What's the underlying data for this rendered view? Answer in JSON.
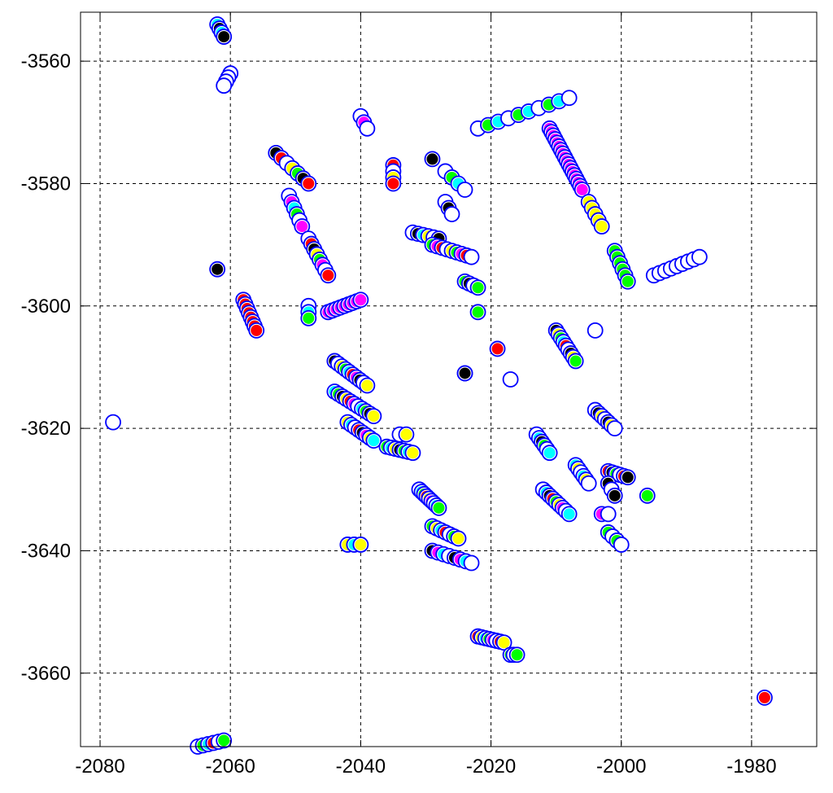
{
  "chart_data": {
    "type": "scatter",
    "title": "",
    "xlabel": "",
    "ylabel": "",
    "xlim": [
      -2083,
      -1970
    ],
    "ylim": [
      -3672,
      -3552
    ],
    "grid": true,
    "x_ticks": [
      -2080,
      -2060,
      -2040,
      -2020,
      -2000,
      -1980
    ],
    "y_ticks": [
      -3560,
      -3580,
      -3600,
      -3620,
      -3640,
      -3660
    ],
    "x_tick_labels": [
      "-2080",
      "-2060",
      "-2040",
      "-2020",
      "-2000",
      "-1980"
    ],
    "y_tick_labels": [
      "-3560",
      "-3580",
      "-3600",
      "-3620",
      "-3640",
      "-3660"
    ],
    "colors": {
      "outline": "#0000ff",
      "black": "#000000",
      "red": "#ff0000",
      "green": "#00ff00",
      "yellow": "#ffff00",
      "cyan": "#00ffff",
      "magenta": "#ff00ff",
      "white": "#ffffff"
    },
    "clusters": [
      {
        "from": [
          -2062,
          -3554
        ],
        "to": [
          -2061,
          -3556
        ],
        "n": 4,
        "fills": [
          "cyan",
          "black"
        ]
      },
      {
        "from": [
          -2060,
          -3562
        ],
        "to": [
          -2061,
          -3564
        ],
        "n": 4,
        "fills": [
          "white"
        ]
      },
      {
        "from": [
          -2062,
          -3594
        ],
        "to": [
          -2062,
          -3594
        ],
        "n": 1,
        "fills": [
          "black"
        ]
      },
      {
        "from": [
          -2058,
          -3599
        ],
        "to": [
          -2056,
          -3604
        ],
        "n": 8,
        "fills": [
          "red"
        ]
      },
      {
        "from": [
          -2078,
          -3619
        ],
        "to": [
          -2078,
          -3619
        ],
        "n": 1,
        "fills": [
          "white"
        ]
      },
      {
        "from": [
          -2053,
          -3575
        ],
        "to": [
          -2048,
          -3580
        ],
        "n": 7,
        "fills": [
          "black",
          "red",
          "white",
          "yellow",
          "green"
        ]
      },
      {
        "from": [
          -2051,
          -3582
        ],
        "to": [
          -2049,
          -3587
        ],
        "n": 6,
        "fills": [
          "white",
          "magenta",
          "cyan",
          "green"
        ]
      },
      {
        "from": [
          -2048,
          -3589
        ],
        "to": [
          -2045,
          -3595
        ],
        "n": 8,
        "fills": [
          "white",
          "red",
          "black",
          "yellow",
          "green",
          "magenta"
        ]
      },
      {
        "from": [
          -2048,
          -3600
        ],
        "to": [
          -2048,
          -3602
        ],
        "n": 3,
        "fills": [
          "white",
          "cyan",
          "green"
        ]
      },
      {
        "from": [
          -2045,
          -3601
        ],
        "to": [
          -2040,
          -3599
        ],
        "n": 9,
        "fills": [
          "magenta"
        ]
      },
      {
        "from": [
          -2040,
          -3569
        ],
        "to": [
          -2039,
          -3571
        ],
        "n": 3,
        "fills": [
          "white",
          "magenta"
        ]
      },
      {
        "from": [
          -2035,
          -3577
        ],
        "to": [
          -2035,
          -3580
        ],
        "n": 4,
        "fills": [
          "red",
          "white",
          "yellow"
        ]
      },
      {
        "from": [
          -2044,
          -3609
        ],
        "to": [
          -2039,
          -3613
        ],
        "n": 10,
        "fills": [
          "black",
          "white",
          "yellow",
          "green",
          "cyan",
          "red",
          "magenta"
        ]
      },
      {
        "from": [
          -2044,
          -3614
        ],
        "to": [
          -2038,
          -3618
        ],
        "n": 11,
        "fills": [
          "cyan",
          "green",
          "black",
          "yellow",
          "red",
          "magenta",
          "white"
        ]
      },
      {
        "from": [
          -2042,
          -3619
        ],
        "to": [
          -2038,
          -3622
        ],
        "n": 8,
        "fills": [
          "yellow",
          "cyan",
          "white",
          "red",
          "black",
          "magenta"
        ]
      },
      {
        "from": [
          -2036,
          -3623
        ],
        "to": [
          -2032,
          -3624
        ],
        "n": 7,
        "fills": [
          "green",
          "cyan",
          "yellow",
          "black"
        ]
      },
      {
        "from": [
          -2034,
          -3621
        ],
        "to": [
          -2033,
          -3621
        ],
        "n": 2,
        "fills": [
          "white",
          "yellow"
        ]
      },
      {
        "from": [
          -2042,
          -3639
        ],
        "to": [
          -2040,
          -3639
        ],
        "n": 3,
        "fills": [
          "yellow",
          "cyan"
        ]
      },
      {
        "from": [
          -2029,
          -3576
        ],
        "to": [
          -2029,
          -3576
        ],
        "n": 1,
        "fills": [
          "black"
        ]
      },
      {
        "from": [
          -2027,
          -3578
        ],
        "to": [
          -2024,
          -3581
        ],
        "n": 4,
        "fills": [
          "white",
          "green",
          "cyan"
        ]
      },
      {
        "from": [
          -2027,
          -3583
        ],
        "to": [
          -2026,
          -3585
        ],
        "n": 3,
        "fills": [
          "white",
          "black"
        ]
      },
      {
        "from": [
          -2032,
          -3588
        ],
        "to": [
          -2028,
          -3589
        ],
        "n": 6,
        "fills": [
          "white",
          "black",
          "cyan",
          "yellow"
        ]
      },
      {
        "from": [
          -2029,
          -3590
        ],
        "to": [
          -2023,
          -3592
        ],
        "n": 9,
        "fills": [
          "green",
          "magenta",
          "red",
          "white",
          "yellow"
        ]
      },
      {
        "from": [
          -2024,
          -3596
        ],
        "to": [
          -2022,
          -3597
        ],
        "n": 4,
        "fills": [
          "green",
          "black",
          "white"
        ]
      },
      {
        "from": [
          -2022,
          -3601
        ],
        "to": [
          -2022,
          -3601
        ],
        "n": 1,
        "fills": [
          "green"
        ]
      },
      {
        "from": [
          -2024,
          -3611
        ],
        "to": [
          -2024,
          -3611
        ],
        "n": 2,
        "fills": [
          "black"
        ]
      },
      {
        "from": [
          -2019,
          -3607
        ],
        "to": [
          -2019,
          -3607
        ],
        "n": 1,
        "fills": [
          "red"
        ]
      },
      {
        "from": [
          -2017,
          -3612
        ],
        "to": [
          -2017,
          -3612
        ],
        "n": 1,
        "fills": [
          "white"
        ]
      },
      {
        "from": [
          -2031,
          -3630
        ],
        "to": [
          -2028,
          -3633
        ],
        "n": 9,
        "fills": [
          "white",
          "cyan",
          "green",
          "red",
          "yellow",
          "magenta"
        ]
      },
      {
        "from": [
          -2029,
          -3636
        ],
        "to": [
          -2025,
          -3638
        ],
        "n": 7,
        "fills": [
          "green",
          "yellow",
          "cyan",
          "red",
          "white"
        ]
      },
      {
        "from": [
          -2029,
          -3640
        ],
        "to": [
          -2023,
          -3642
        ],
        "n": 8,
        "fills": [
          "black",
          "magenta",
          "cyan",
          "white"
        ]
      },
      {
        "from": [
          -2022,
          -3654
        ],
        "to": [
          -2018,
          -3655
        ],
        "n": 8,
        "fills": [
          "red",
          "yellow",
          "cyan",
          "green",
          "magenta",
          "white"
        ]
      },
      {
        "from": [
          -2017,
          -3657
        ],
        "to": [
          -2016,
          -3657
        ],
        "n": 3,
        "fills": [
          "green",
          "white"
        ]
      },
      {
        "from": [
          -2022,
          -3571
        ],
        "to": [
          -2008,
          -3566
        ],
        "n": 10,
        "fills": [
          "white",
          "green",
          "cyan"
        ]
      },
      {
        "from": [
          -2011,
          -3571
        ],
        "to": [
          -2006,
          -3581
        ],
        "n": 18,
        "fills": [
          "magenta"
        ]
      },
      {
        "from": [
          -2005,
          -3583
        ],
        "to": [
          -2003,
          -3587
        ],
        "n": 5,
        "fills": [
          "yellow"
        ]
      },
      {
        "from": [
          -2001,
          -3591
        ],
        "to": [
          -1999,
          -3596
        ],
        "n": 6,
        "fills": [
          "green"
        ]
      },
      {
        "from": [
          -1995,
          -3595
        ],
        "to": [
          -1988,
          -3592
        ],
        "n": 9,
        "fills": [
          "white"
        ]
      },
      {
        "from": [
          -2010,
          -3604
        ],
        "to": [
          -2007,
          -3609
        ],
        "n": 9,
        "fills": [
          "black",
          "yellow",
          "green",
          "cyan",
          "red",
          "white"
        ]
      },
      {
        "from": [
          -2004,
          -3604
        ],
        "to": [
          -2004,
          -3604
        ],
        "n": 1,
        "fills": [
          "white"
        ]
      },
      {
        "from": [
          -2013,
          -3621
        ],
        "to": [
          -2011,
          -3624
        ],
        "n": 6,
        "fills": [
          "white",
          "cyan",
          "black",
          "green"
        ]
      },
      {
        "from": [
          -2004,
          -3617
        ],
        "to": [
          -2001,
          -3620
        ],
        "n": 7,
        "fills": [
          "white",
          "black",
          "yellow"
        ]
      },
      {
        "from": [
          -2012,
          -3630
        ],
        "to": [
          -2008,
          -3634
        ],
        "n": 9,
        "fills": [
          "white",
          "cyan",
          "black",
          "red",
          "green",
          "yellow",
          "magenta"
        ]
      },
      {
        "from": [
          -2007,
          -3626
        ],
        "to": [
          -2005,
          -3629
        ],
        "n": 6,
        "fills": [
          "cyan",
          "yellow",
          "white"
        ]
      },
      {
        "from": [
          -2002,
          -3627
        ],
        "to": [
          -1999,
          -3628
        ],
        "n": 6,
        "fills": [
          "red",
          "black",
          "green",
          "white"
        ]
      },
      {
        "from": [
          -2002,
          -3629
        ],
        "to": [
          -2001,
          -3631
        ],
        "n": 3,
        "fills": [
          "black",
          "white"
        ]
      },
      {
        "from": [
          -2003,
          -3634
        ],
        "to": [
          -2002,
          -3634
        ],
        "n": 2,
        "fills": [
          "magenta",
          "white"
        ]
      },
      {
        "from": [
          -2002,
          -3637
        ],
        "to": [
          -2000,
          -3639
        ],
        "n": 4,
        "fills": [
          "green",
          "white"
        ]
      },
      {
        "from": [
          -1996,
          -3631
        ],
        "to": [
          -1996,
          -3631
        ],
        "n": 1,
        "fills": [
          "green"
        ]
      },
      {
        "from": [
          -1978,
          -3664
        ],
        "to": [
          -1978,
          -3664
        ],
        "n": 1,
        "fills": [
          "red"
        ]
      },
      {
        "from": [
          -2065,
          -3672
        ],
        "to": [
          -2061,
          -3671
        ],
        "n": 6,
        "fills": [
          "white",
          "green",
          "cyan",
          "red"
        ]
      }
    ]
  }
}
